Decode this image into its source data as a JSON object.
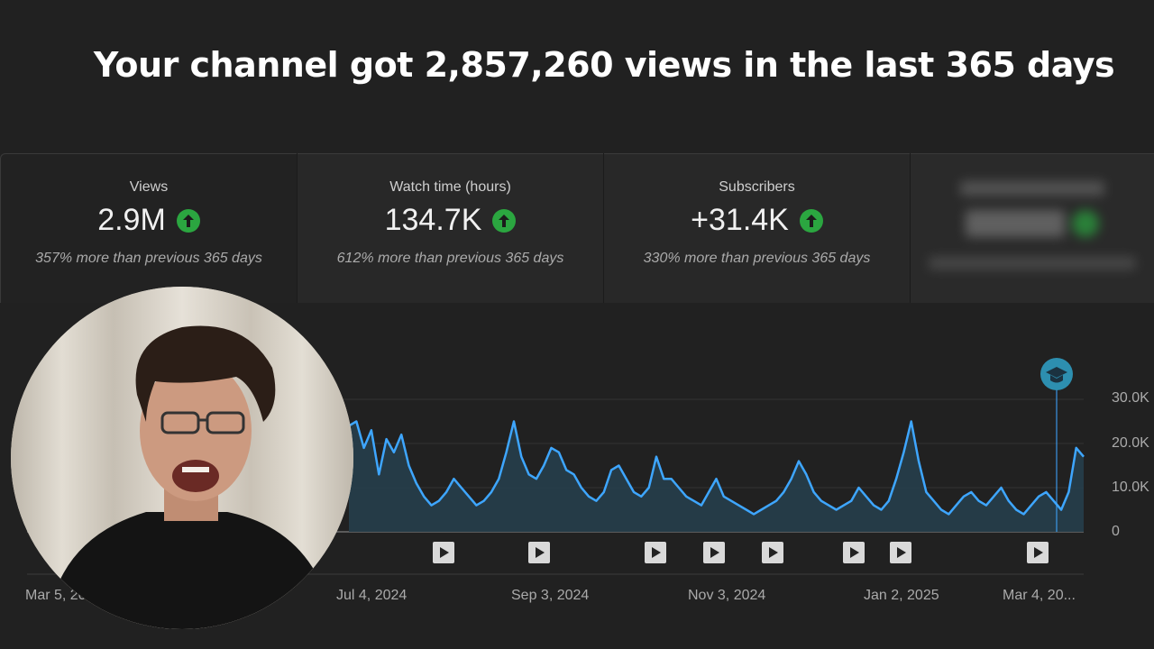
{
  "headline": "Your channel got 2,857,260 views in the last 365 days",
  "cards": [
    {
      "label": "Views",
      "value": "2.9M",
      "comparison": "357% more than previous 365 days",
      "trend": "up"
    },
    {
      "label": "Watch time (hours)",
      "value": "134.7K",
      "comparison": "612% more than previous 365 days",
      "trend": "up"
    },
    {
      "label": "Subscribers",
      "value": "+31.4K",
      "comparison": "330% more than previous 365 days",
      "trend": "up"
    }
  ],
  "chart_data": {
    "type": "area",
    "metric": "views",
    "y_ticks": [
      "0",
      "10.0K",
      "20.0K",
      "30.0K"
    ],
    "ylim": [
      0,
      30000
    ],
    "x_tick_labels": [
      "Mar 5, 20",
      "Jul 4, 2024",
      "Sep 3, 2024",
      "Nov 3, 2024",
      "Jan 2, 2025",
      "Mar 4, 20..."
    ],
    "series": [
      {
        "values": [
          24000,
          25000,
          19000,
          23000,
          13000,
          21000,
          18000,
          22000,
          15000,
          11000,
          8000,
          6000,
          7000,
          9000,
          12000,
          10000,
          8000,
          6000,
          7000,
          9000,
          12000,
          18000,
          25000,
          17000,
          13000,
          12000,
          15000,
          19000,
          18000,
          14000,
          13000,
          10000,
          8000,
          7000,
          9000,
          14000,
          15000,
          12000,
          9000,
          8000,
          10000,
          17000,
          12000,
          12000,
          10000,
          8000,
          7000,
          6000,
          9000,
          12000,
          8000,
          7000,
          6000,
          5000,
          4000,
          5000,
          6000,
          7000,
          9000,
          12000,
          16000,
          13000,
          9000,
          7000,
          6000,
          5000,
          6000,
          7000,
          10000,
          8000,
          6000,
          5000,
          7000,
          12000,
          18000,
          25000,
          16000,
          9000,
          7000,
          5000,
          4000,
          6000,
          8000,
          9000,
          7000,
          6000,
          8000,
          10000,
          7000,
          5000,
          4000,
          6000,
          8000,
          9000,
          7000,
          5000,
          9000,
          19000,
          17000
        ]
      }
    ],
    "video_markers": 8,
    "annotation_icon": "graduation-cap-icon"
  },
  "icons": {
    "trend_up": "arrow-up-icon",
    "video_marker": "play-icon"
  },
  "colors": {
    "line": "#3ea6ff",
    "fill": "#263d4a",
    "up": "#2ba640",
    "bg": "#212121"
  }
}
